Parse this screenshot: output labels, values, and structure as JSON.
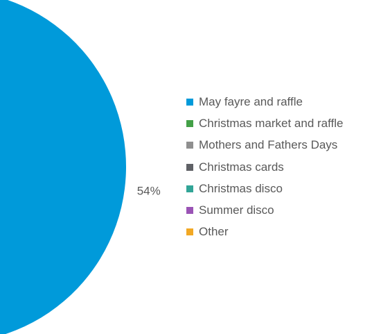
{
  "chart_data": {
    "type": "pie",
    "title": "",
    "slices": [
      {
        "label": "May fayre and raffle",
        "value": 54,
        "value_label": "54%",
        "color": "#009ADA"
      },
      {
        "label": "Christmas market and raffle",
        "value": null,
        "value_label": "",
        "color": "#43A047"
      },
      {
        "label": "Mothers and Fathers Days",
        "value": null,
        "value_label": "",
        "color": "#8F8F8F"
      },
      {
        "label": "Christmas cards",
        "value": null,
        "value_label": "",
        "color": "#5F6166"
      },
      {
        "label": "Christmas disco",
        "value": null,
        "value_label": "",
        "color": "#32A597"
      },
      {
        "label": "Summer disco",
        "value": null,
        "value_label": "",
        "color": "#9A53B5"
      },
      {
        "label": "Other",
        "value": null,
        "value_label": "",
        "color": "#F2A824"
      }
    ],
    "legend_position": "right"
  }
}
